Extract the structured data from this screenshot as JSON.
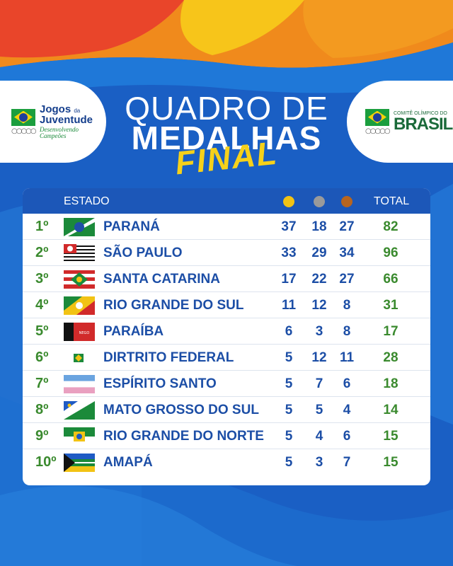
{
  "header": {
    "title_line1": "QUADRO DE",
    "title_line2": "MEDALHAS",
    "title_accent": "FINAL"
  },
  "logos": {
    "left": {
      "line1": "Jogos",
      "line1_small": "da",
      "line2": "Juventude",
      "tagline": "Desenvolvendo Campeões"
    },
    "right": {
      "line1": "COMITÊ OLÍMPICO DO",
      "line2": "BRASIL"
    }
  },
  "table": {
    "col_estado": "ESTADO",
    "col_total": "TOTAL",
    "medal_colors": {
      "gold": "#f2c314",
      "silver": "#9a9a9a",
      "bronze": "#b8651e"
    },
    "rows": [
      {
        "rank": "1º",
        "state": "PARANÁ",
        "gold": "37",
        "silver": "18",
        "bronze": "27",
        "total": "82",
        "flag": "parana-flag"
      },
      {
        "rank": "2º",
        "state": "SÃO PAULO",
        "gold": "33",
        "silver": "29",
        "bronze": "34",
        "total": "96",
        "flag": "sao-paulo-flag"
      },
      {
        "rank": "3º",
        "state": "SANTA CATARINA",
        "gold": "17",
        "silver": "22",
        "bronze": "27",
        "total": "66",
        "flag": "santa-catarina-flag"
      },
      {
        "rank": "4º",
        "state": "RIO GRANDE DO SUL",
        "gold": "11",
        "silver": "12",
        "bronze": "8",
        "total": "31",
        "flag": "rio-grande-do-sul-flag"
      },
      {
        "rank": "5º",
        "state": "PARAÍBA",
        "gold": "6",
        "silver": "3",
        "bronze": "8",
        "total": "17",
        "flag": "paraiba-flag"
      },
      {
        "rank": "6º",
        "state": "DIRTRITO FEDERAL",
        "gold": "5",
        "silver": "12",
        "bronze": "11",
        "total": "28",
        "flag": "distrito-federal-flag"
      },
      {
        "rank": "7º",
        "state": "ESPÍRITO SANTO",
        "gold": "5",
        "silver": "7",
        "bronze": "6",
        "total": "18",
        "flag": "espirito-santo-flag"
      },
      {
        "rank": "8º",
        "state": "MATO GROSSO DO SUL",
        "gold": "5",
        "silver": "5",
        "bronze": "4",
        "total": "14",
        "flag": "mato-grosso-do-sul-flag"
      },
      {
        "rank": "9º",
        "state": "RIO GRANDE DO NORTE",
        "gold": "5",
        "silver": "4",
        "bronze": "6",
        "total": "15",
        "flag": "rio-grande-do-norte-flag"
      },
      {
        "rank": "10º",
        "state": "AMAPÁ",
        "gold": "5",
        "silver": "3",
        "bronze": "7",
        "total": "15",
        "flag": "amapa-flag"
      }
    ]
  }
}
